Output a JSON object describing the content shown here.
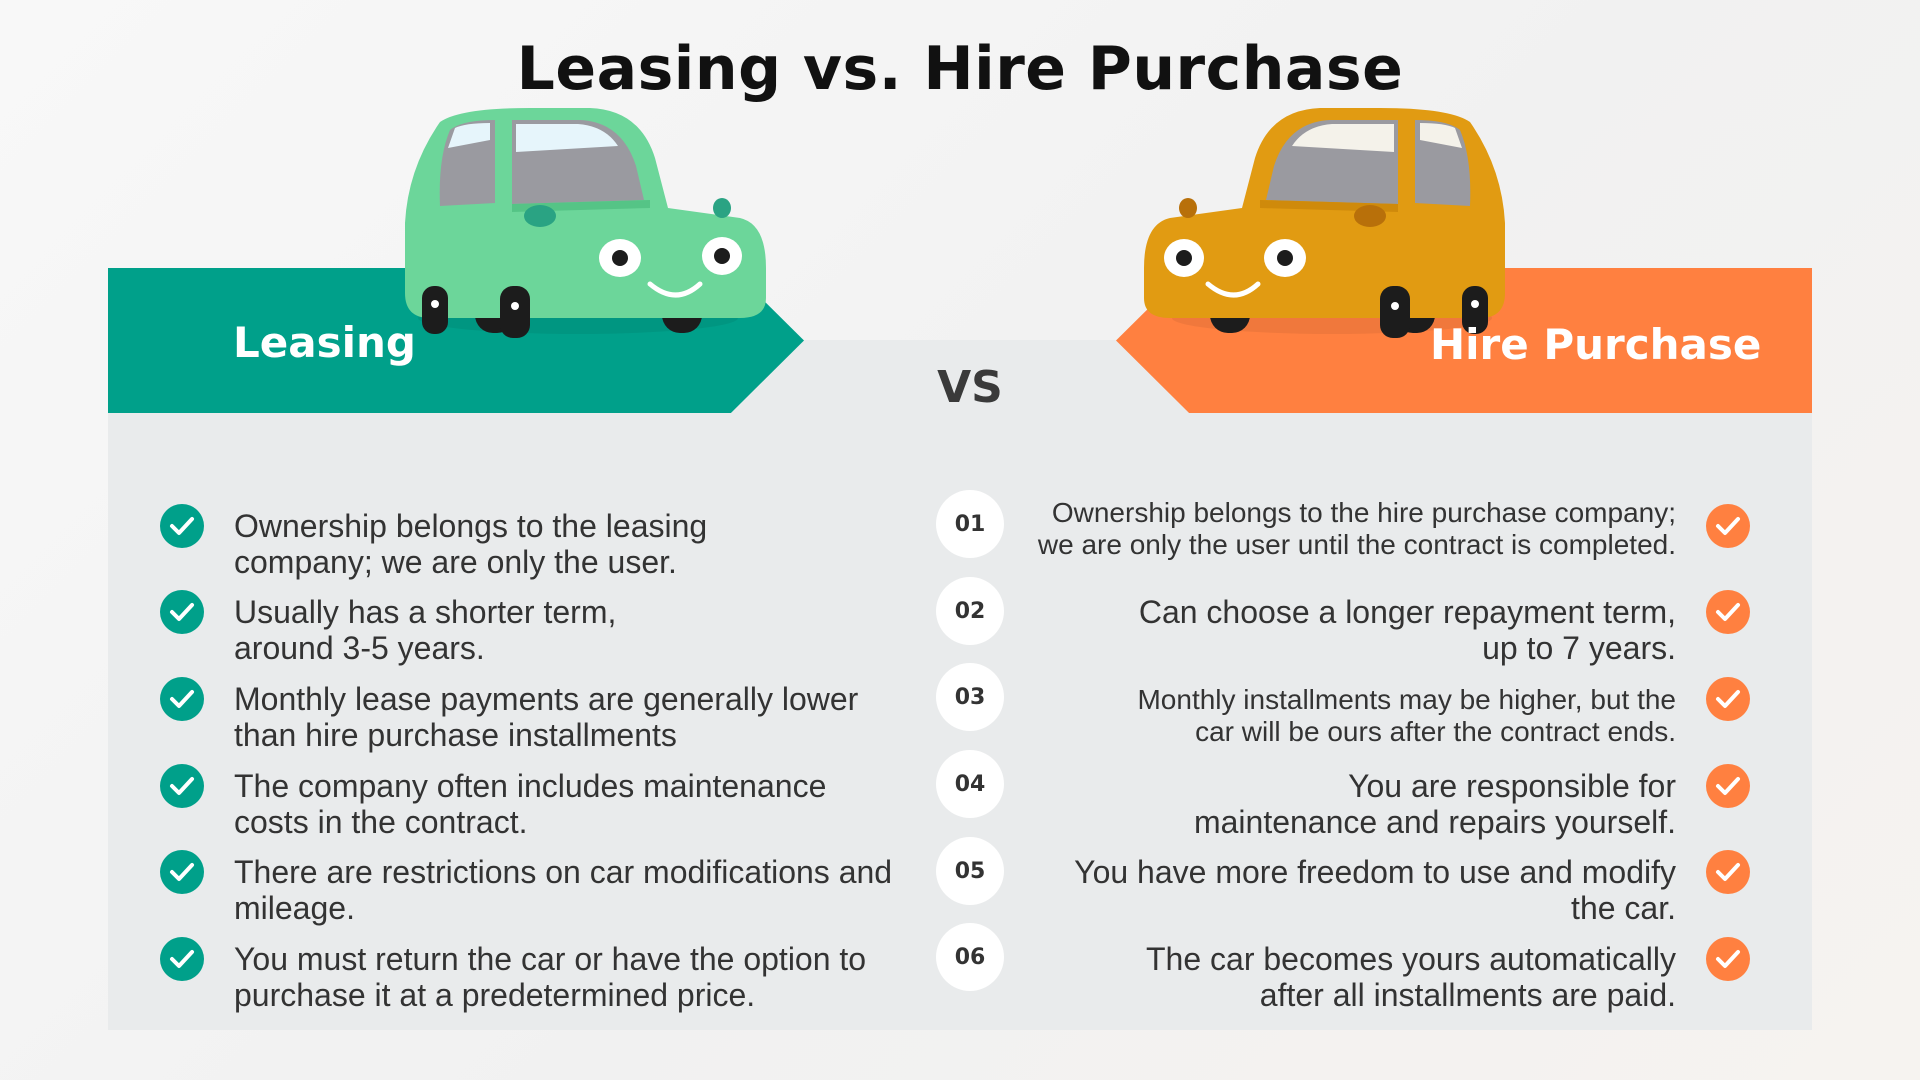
{
  "title": "Leasing vs. Hire Purchase",
  "vs_label": "VS",
  "colors": {
    "leasing": "#00a08a",
    "hire_purchase": "#ff8040",
    "panel": "#e9ebec"
  },
  "leasing": {
    "label": "Leasing",
    "car_icon": "green-cartoon-car",
    "items": [
      "Ownership belongs to the leasing\ncompany; we are only the user.",
      "Usually has a shorter term,\naround 3-5 years.",
      "Monthly lease payments are generally lower\nthan hire purchase installments",
      "The company often includes maintenance\ncosts in the contract.",
      "There are restrictions on car modifications and\nmileage.",
      "You must return the car or have the option to\npurchase it at a predetermined price."
    ]
  },
  "hire_purchase": {
    "label": "Hire Purchase",
    "car_icon": "orange-cartoon-car",
    "items": [
      "Ownership belongs to the hire purchase company;\nwe are only the user until the contract is completed.",
      "Can choose a longer repayment term,\nup to 7 years.",
      "Monthly installments may be higher, but the\ncar will be ours after the contract ends.",
      "You are responsible for\nmaintenance and repairs yourself.",
      "You have more freedom to use and modify\nthe car.",
      "The car becomes yours automatically\nafter all installments are paid."
    ]
  },
  "numbers": [
    "01",
    "02",
    "03",
    "04",
    "05",
    "06"
  ]
}
